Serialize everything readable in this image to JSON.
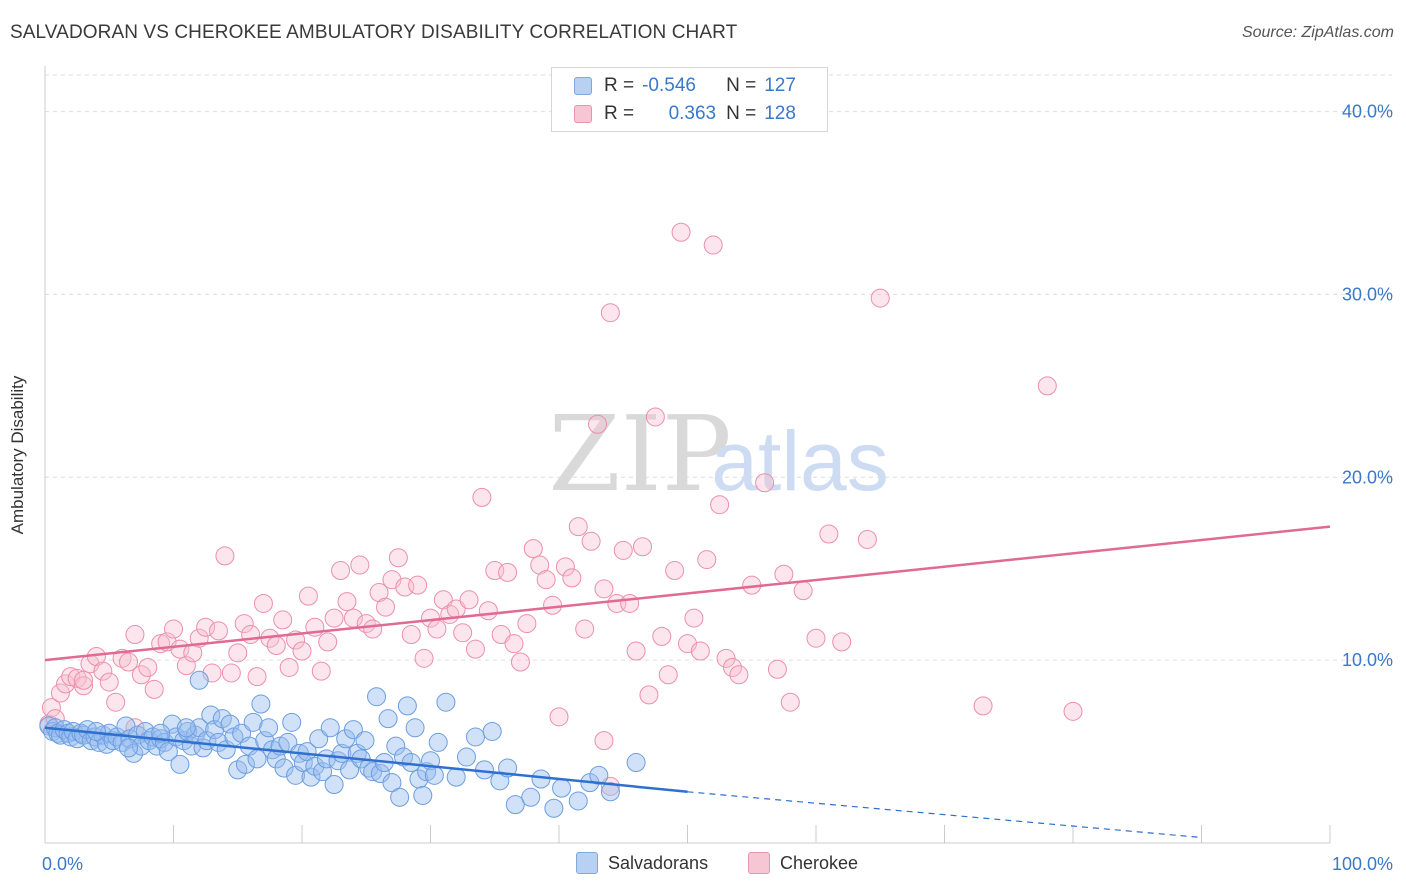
{
  "title": "SALVADORAN VS CHEROKEE AMBULATORY DISABILITY CORRELATION CHART",
  "source": "Source: ZipAtlas.com",
  "watermark": {
    "zip": "ZIP",
    "atlas": "atlas"
  },
  "legend": {
    "series": [
      {
        "r_label": "R =",
        "r_value": "-0.546",
        "n_label": "N =",
        "n_value": "127",
        "color": "#6c9ee0"
      },
      {
        "r_label": "R =",
        "r_value": "0.363",
        "n_label": "N =",
        "n_value": "128",
        "color": "#ec8fab"
      }
    ]
  },
  "bottom_legend": [
    "Salvadorans",
    "Cherokee"
  ],
  "chart_data": {
    "type": "scatter",
    "title": "SALVADORAN VS CHEROKEE AMBULATORY DISABILITY CORRELATION CHART",
    "xlabel": "",
    "ylabel": "Ambulatory Disability",
    "xlim": [
      0,
      100
    ],
    "ylim": [
      0,
      42
    ],
    "x_ticks": [
      "0.0%",
      "100.0%"
    ],
    "y_ticks": [
      {
        "value": 10,
        "label": "10.0%"
      },
      {
        "value": 20,
        "label": "20.0%"
      },
      {
        "value": 30,
        "label": "30.0%"
      },
      {
        "value": 40,
        "label": "40.0%"
      }
    ],
    "grid": true,
    "legend_position": "top-center",
    "series": [
      {
        "name": "Salvadorans",
        "color": "#6c9ee0",
        "trend": {
          "x": [
            0,
            50
          ],
          "y": [
            6.3,
            2.8
          ],
          "dashed_extension_to": [
            90,
            0.3
          ]
        },
        "points": [
          [
            0.3,
            6.4
          ],
          [
            0.6,
            6.1
          ],
          [
            0.8,
            6.3
          ],
          [
            1.0,
            6.0
          ],
          [
            1.2,
            5.9
          ],
          [
            1.5,
            6.2
          ],
          [
            1.8,
            6.0
          ],
          [
            2.0,
            5.8
          ],
          [
            2.2,
            6.1
          ],
          [
            2.5,
            5.7
          ],
          [
            2.8,
            6.0
          ],
          [
            3.0,
            5.9
          ],
          [
            3.3,
            6.2
          ],
          [
            3.6,
            5.6
          ],
          [
            3.9,
            5.8
          ],
          [
            4.2,
            5.5
          ],
          [
            4.5,
            5.9
          ],
          [
            4.8,
            5.4
          ],
          [
            5.0,
            6.0
          ],
          [
            5.3,
            5.6
          ],
          [
            5.6,
            5.8
          ],
          [
            6.0,
            5.5
          ],
          [
            6.3,
            6.4
          ],
          [
            6.6,
            5.7
          ],
          [
            6.9,
            4.9
          ],
          [
            7.2,
            5.9
          ],
          [
            7.5,
            5.3
          ],
          [
            7.8,
            6.1
          ],
          [
            8.1,
            5.6
          ],
          [
            8.4,
            5.8
          ],
          [
            8.7,
            5.3
          ],
          [
            9.0,
            5.7
          ],
          [
            9.3,
            5.5
          ],
          [
            9.6,
            5.0
          ],
          [
            9.9,
            6.5
          ],
          [
            10.2,
            5.8
          ],
          [
            10.5,
            4.3
          ],
          [
            10.8,
            5.6
          ],
          [
            11.1,
            6.1
          ],
          [
            11.4,
            5.3
          ],
          [
            11.7,
            5.9
          ],
          [
            12.0,
            6.3
          ],
          [
            12.3,
            5.2
          ],
          [
            12.6,
            5.6
          ],
          [
            12.9,
            7.0
          ],
          [
            13.2,
            6.2
          ],
          [
            13.5,
            5.5
          ],
          [
            13.8,
            6.8
          ],
          [
            14.1,
            5.1
          ],
          [
            14.4,
            6.5
          ],
          [
            14.7,
            5.8
          ],
          [
            15.0,
            4.0
          ],
          [
            15.3,
            6.0
          ],
          [
            15.6,
            4.3
          ],
          [
            15.9,
            5.3
          ],
          [
            16.2,
            6.6
          ],
          [
            16.5,
            4.6
          ],
          [
            16.8,
            7.6
          ],
          [
            17.1,
            5.6
          ],
          [
            17.4,
            6.3
          ],
          [
            17.7,
            5.1
          ],
          [
            18.0,
            4.6
          ],
          [
            18.3,
            5.3
          ],
          [
            18.6,
            4.1
          ],
          [
            18.9,
            5.5
          ],
          [
            19.2,
            6.6
          ],
          [
            19.5,
            3.7
          ],
          [
            19.8,
            4.9
          ],
          [
            20.1,
            4.4
          ],
          [
            20.4,
            5.0
          ],
          [
            20.7,
            3.6
          ],
          [
            21.0,
            4.2
          ],
          [
            21.3,
            5.7
          ],
          [
            21.6,
            3.9
          ],
          [
            21.9,
            4.6
          ],
          [
            22.2,
            6.3
          ],
          [
            22.5,
            3.2
          ],
          [
            22.8,
            4.5
          ],
          [
            23.1,
            4.9
          ],
          [
            23.4,
            5.7
          ],
          [
            23.7,
            4.0
          ],
          [
            24.0,
            6.2
          ],
          [
            24.3,
            4.9
          ],
          [
            24.6,
            4.6
          ],
          [
            24.9,
            5.6
          ],
          [
            25.2,
            4.1
          ],
          [
            25.5,
            3.9
          ],
          [
            25.8,
            8.0
          ],
          [
            26.1,
            3.8
          ],
          [
            26.4,
            4.4
          ],
          [
            26.7,
            6.8
          ],
          [
            27.0,
            3.3
          ],
          [
            27.3,
            5.3
          ],
          [
            27.6,
            2.5
          ],
          [
            27.9,
            4.7
          ],
          [
            28.2,
            7.5
          ],
          [
            28.5,
            4.4
          ],
          [
            28.8,
            6.3
          ],
          [
            29.1,
            3.5
          ],
          [
            29.4,
            2.6
          ],
          [
            29.7,
            3.9
          ],
          [
            30.0,
            4.5
          ],
          [
            30.3,
            3.7
          ],
          [
            30.6,
            5.5
          ],
          [
            31.2,
            7.7
          ],
          [
            32.0,
            3.6
          ],
          [
            32.8,
            4.7
          ],
          [
            33.5,
            5.8
          ],
          [
            34.2,
            4.0
          ],
          [
            34.8,
            6.1
          ],
          [
            35.4,
            3.4
          ],
          [
            36.0,
            4.1
          ],
          [
            36.6,
            2.1
          ],
          [
            37.8,
            2.5
          ],
          [
            38.6,
            3.5
          ],
          [
            39.6,
            1.9
          ],
          [
            40.2,
            3.0
          ],
          [
            41.5,
            2.3
          ],
          [
            42.4,
            3.3
          ],
          [
            43.1,
            3.7
          ],
          [
            44.0,
            2.8
          ],
          [
            46.0,
            4.4
          ],
          [
            12.0,
            8.9
          ],
          [
            11.0,
            6.3
          ],
          [
            9.0,
            6.0
          ],
          [
            6.5,
            5.2
          ],
          [
            4.0,
            6.1
          ]
        ]
      },
      {
        "name": "Cherokee",
        "color": "#ec8fab",
        "trend": {
          "x": [
            0,
            100
          ],
          "y": [
            10.0,
            17.3
          ]
        },
        "points": [
          [
            0.3,
            6.5
          ],
          [
            0.5,
            7.4
          ],
          [
            0.8,
            6.8
          ],
          [
            1.2,
            8.2
          ],
          [
            1.6,
            8.7
          ],
          [
            2.0,
            9.1
          ],
          [
            2.5,
            9.0
          ],
          [
            3.0,
            8.6
          ],
          [
            3.5,
            9.8
          ],
          [
            4.0,
            10.2
          ],
          [
            4.5,
            9.4
          ],
          [
            5.0,
            8.8
          ],
          [
            5.5,
            7.7
          ],
          [
            6.0,
            10.1
          ],
          [
            6.5,
            9.9
          ],
          [
            7.0,
            11.4
          ],
          [
            7.5,
            9.2
          ],
          [
            8.0,
            9.6
          ],
          [
            8.5,
            8.4
          ],
          [
            9.0,
            10.9
          ],
          [
            9.5,
            11.0
          ],
          [
            10.0,
            11.7
          ],
          [
            10.5,
            10.6
          ],
          [
            11.0,
            9.7
          ],
          [
            11.5,
            10.4
          ],
          [
            12.0,
            11.2
          ],
          [
            12.5,
            11.8
          ],
          [
            13.0,
            9.3
          ],
          [
            13.5,
            11.6
          ],
          [
            14.0,
            15.7
          ],
          [
            14.5,
            9.3
          ],
          [
            15.0,
            10.4
          ],
          [
            15.5,
            12.0
          ],
          [
            16.0,
            11.4
          ],
          [
            16.5,
            9.1
          ],
          [
            17.0,
            13.1
          ],
          [
            17.5,
            11.2
          ],
          [
            18.0,
            10.8
          ],
          [
            18.5,
            12.2
          ],
          [
            19.0,
            9.6
          ],
          [
            19.5,
            11.1
          ],
          [
            20.0,
            10.5
          ],
          [
            20.5,
            13.5
          ],
          [
            21.0,
            11.8
          ],
          [
            21.5,
            9.4
          ],
          [
            22.0,
            11.0
          ],
          [
            22.5,
            12.3
          ],
          [
            23.0,
            14.9
          ],
          [
            23.5,
            13.2
          ],
          [
            24.0,
            12.3
          ],
          [
            24.5,
            15.2
          ],
          [
            25.0,
            12.0
          ],
          [
            25.5,
            11.7
          ],
          [
            26.0,
            13.7
          ],
          [
            26.5,
            12.9
          ],
          [
            27.0,
            14.4
          ],
          [
            27.5,
            15.6
          ],
          [
            28.0,
            14.0
          ],
          [
            28.5,
            11.4
          ],
          [
            29.0,
            14.1
          ],
          [
            29.5,
            10.1
          ],
          [
            30.0,
            12.3
          ],
          [
            30.5,
            11.7
          ],
          [
            31.0,
            13.3
          ],
          [
            31.5,
            12.5
          ],
          [
            32.0,
            12.8
          ],
          [
            32.5,
            11.5
          ],
          [
            33.0,
            13.3
          ],
          [
            33.5,
            10.6
          ],
          [
            34.0,
            18.9
          ],
          [
            34.5,
            12.7
          ],
          [
            35.0,
            14.9
          ],
          [
            35.5,
            11.4
          ],
          [
            36.0,
            14.8
          ],
          [
            36.5,
            10.9
          ],
          [
            37.0,
            9.9
          ],
          [
            37.5,
            12.0
          ],
          [
            38.0,
            16.1
          ],
          [
            38.5,
            15.2
          ],
          [
            39.0,
            14.4
          ],
          [
            39.5,
            13.0
          ],
          [
            40.0,
            6.9
          ],
          [
            40.5,
            15.1
          ],
          [
            41.0,
            14.5
          ],
          [
            41.5,
            17.3
          ],
          [
            42.0,
            11.7
          ],
          [
            42.5,
            16.5
          ],
          [
            43.0,
            22.9
          ],
          [
            43.5,
            13.9
          ],
          [
            44.0,
            29.0
          ],
          [
            44.5,
            13.1
          ],
          [
            45.0,
            16.0
          ],
          [
            45.5,
            13.1
          ],
          [
            46.0,
            10.5
          ],
          [
            46.5,
            16.2
          ],
          [
            47.0,
            8.1
          ],
          [
            47.5,
            23.3
          ],
          [
            48.0,
            11.3
          ],
          [
            48.5,
            9.2
          ],
          [
            49.0,
            14.9
          ],
          [
            49.5,
            33.4
          ],
          [
            50.0,
            10.9
          ],
          [
            50.5,
            12.3
          ],
          [
            51.0,
            10.5
          ],
          [
            51.5,
            15.5
          ],
          [
            52.0,
            32.7
          ],
          [
            52.5,
            18.5
          ],
          [
            53.0,
            10.1
          ],
          [
            53.5,
            9.6
          ],
          [
            54.0,
            9.2
          ],
          [
            55.0,
            14.1
          ],
          [
            56.0,
            19.7
          ],
          [
            57.0,
            9.5
          ],
          [
            57.5,
            14.7
          ],
          [
            58.0,
            7.7
          ],
          [
            59.0,
            13.8
          ],
          [
            60.0,
            11.2
          ],
          [
            61.0,
            16.9
          ],
          [
            62.0,
            11.0
          ],
          [
            64.0,
            16.6
          ],
          [
            65.0,
            29.8
          ],
          [
            73.0,
            7.5
          ],
          [
            78.0,
            25.0
          ],
          [
            80.0,
            7.2
          ],
          [
            43.5,
            5.6
          ],
          [
            44.0,
            3.1
          ],
          [
            7.0,
            6.3
          ],
          [
            3.0,
            8.9
          ]
        ]
      }
    ]
  }
}
